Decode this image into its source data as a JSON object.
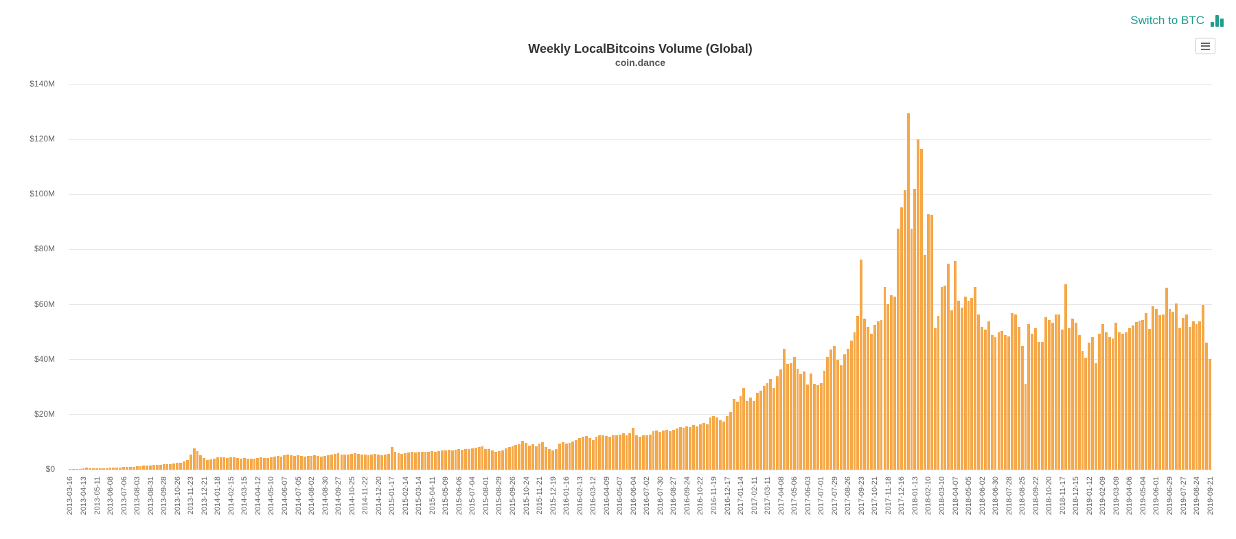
{
  "header": {
    "switch_link": {
      "label": "Switch to BTC",
      "color": "#1f9d8f",
      "icon": "bar-chart-icon"
    },
    "context_menu": {
      "icon": "hamburger-icon"
    }
  },
  "chart": {
    "title": "Weekly LocalBitcoins Volume (Global)",
    "subtitle": "coin.dance",
    "colors": {
      "bar": "#f5a849",
      "grid": "#e7e7e7",
      "axis_label": "#666666",
      "title": "#333333",
      "subtitle": "#555555",
      "link": "#1f9d8f"
    }
  },
  "chart_data": {
    "type": "bar",
    "title": "Weekly LocalBitcoins Volume (Global)",
    "subtitle": "coin.dance",
    "x_start": "2013-03-16",
    "x_interval": "weekly",
    "x_tick_every": 4,
    "x_tick_labels": [
      "2013-03-16",
      "2013-04-13",
      "2013-05-11",
      "2013-06-08",
      "2013-07-06",
      "2013-08-03",
      "2013-08-31",
      "2013-09-28",
      "2013-10-26",
      "2013-11-23",
      "2013-12-21",
      "2014-01-18",
      "2014-02-15",
      "2014-03-15",
      "2014-04-12",
      "2014-05-10",
      "2014-06-07",
      "2014-07-05",
      "2014-08-02",
      "2014-08-30",
      "2014-09-27",
      "2014-10-25",
      "2014-11-22",
      "2014-12-20",
      "2015-01-17",
      "2015-02-14",
      "2015-03-14",
      "2015-04-11",
      "2015-05-09",
      "2015-06-06",
      "2015-07-04",
      "2015-08-01",
      "2015-08-29",
      "2015-09-26",
      "2015-10-24",
      "2015-11-21",
      "2015-12-19",
      "2016-01-16",
      "2016-02-13",
      "2016-03-12",
      "2016-04-09",
      "2016-05-07",
      "2016-06-04",
      "2016-07-02",
      "2016-07-30",
      "2016-08-27",
      "2016-09-24",
      "2016-10-22",
      "2016-11-19",
      "2016-12-17",
      "2017-01-14",
      "2017-02-11",
      "2017-03-11",
      "2017-04-08",
      "2017-05-06",
      "2017-06-03",
      "2017-07-01",
      "2017-07-29",
      "2017-08-26",
      "2017-09-23",
      "2017-10-21",
      "2017-11-18",
      "2017-12-16",
      "2018-01-13",
      "2018-02-10",
      "2018-03-10",
      "2018-04-07",
      "2018-05-05",
      "2018-06-02",
      "2018-06-30",
      "2018-07-28",
      "2018-08-25",
      "2018-09-22",
      "2018-10-20",
      "2018-11-17",
      "2018-12-15",
      "2019-01-12",
      "2019-02-09",
      "2019-03-09",
      "2019-04-06",
      "2019-05-04",
      "2019-06-01",
      "2019-06-29",
      "2019-07-27",
      "2019-08-24",
      "2019-09-21"
    ],
    "y_tick_labels": [
      "$0",
      "$20M",
      "$40M",
      "$60M",
      "$80M",
      "$100M",
      "$120M",
      "$140M"
    ],
    "ylim": [
      0,
      140
    ],
    "y_unit": "USD millions",
    "grid": "horizontal",
    "bar_color": "#f5a849",
    "values": [
      0.2,
      0.25,
      0.3,
      0.3,
      0.5,
      0.7,
      0.6,
      0.5,
      0.5,
      0.5,
      0.6,
      0.6,
      0.7,
      0.7,
      0.8,
      0.8,
      0.9,
      1.0,
      1.0,
      1.1,
      1.2,
      1.3,
      1.4,
      1.5,
      1.6,
      1.7,
      1.8,
      1.8,
      1.9,
      2.0,
      2.1,
      2.2,
      2.4,
      2.6,
      3.0,
      3.6,
      5.5,
      7.8,
      6.8,
      5.2,
      4.2,
      3.6,
      3.8,
      4.0,
      4.4,
      4.6,
      4.4,
      4.2,
      4.6,
      4.4,
      4.2,
      4.0,
      4.2,
      4.0,
      3.9,
      4.0,
      4.2,
      4.4,
      4.3,
      4.2,
      4.5,
      4.8,
      5.0,
      4.8,
      5.2,
      5.4,
      5.2,
      5.0,
      5.2,
      5.0,
      4.8,
      4.9,
      5.0,
      5.2,
      5.0,
      4.8,
      5.0,
      5.3,
      5.6,
      5.8,
      6.0,
      5.6,
      5.4,
      5.6,
      5.8,
      6.0,
      5.8,
      5.6,
      5.5,
      5.3,
      5.5,
      5.7,
      5.4,
      5.2,
      5.5,
      5.8,
      8.3,
      6.5,
      6.0,
      5.8,
      6.0,
      6.2,
      6.4,
      6.3,
      6.5,
      6.6,
      6.4,
      6.6,
      6.8,
      6.6,
      6.8,
      7.0,
      7.0,
      7.2,
      7.0,
      7.2,
      7.4,
      7.2,
      7.4,
      7.6,
      7.8,
      8.0,
      8.2,
      8.4,
      7.5,
      7.4,
      7.0,
      6.5,
      6.8,
      7.1,
      7.7,
      8.2,
      8.5,
      9.0,
      9.2,
      10.4,
      9.8,
      8.7,
      9.2,
      8.5,
      9.5,
      10.0,
      8.2,
      7.4,
      7.1,
      7.5,
      9.4,
      10.0,
      9.6,
      9.8,
      10.2,
      10.8,
      11.6,
      12.0,
      12.3,
      11.6,
      10.8,
      12.0,
      12.4,
      12.6,
      12.3,
      12.0,
      12.4,
      12.6,
      12.8,
      13.2,
      12.6,
      13.3,
      15.3,
      12.4,
      12.0,
      12.6,
      12.4,
      12.8,
      13.9,
      14.3,
      13.8,
      14.3,
      14.6,
      14.0,
      14.6,
      15.0,
      15.6,
      15.3,
      15.8,
      15.6,
      16.3,
      15.8,
      16.6,
      17.1,
      16.4,
      19.0,
      19.4,
      19.0,
      18.0,
      17.5,
      19.5,
      21.0,
      25.8,
      24.7,
      26.8,
      29.6,
      25.0,
      26.3,
      25.0,
      28.0,
      28.6,
      30.4,
      31.5,
      33.0,
      29.6,
      34.0,
      36.5,
      44.0,
      38.5,
      38.6,
      41.0,
      36.6,
      34.8,
      35.7,
      31.0,
      35.0,
      31.2,
      30.8,
      31.5,
      36.0,
      41.0,
      43.8,
      45.0,
      40.0,
      38.0,
      42.0,
      44.0,
      47.0,
      50.0,
      56.0,
      76.3,
      55.0,
      52.0,
      49.5,
      52.7,
      54.0,
      54.5,
      66.4,
      60.2,
      63.5,
      63.0,
      87.5,
      95.3,
      101.5,
      129.5,
      87.5,
      102.0,
      120.0,
      116.5,
      78.0,
      92.8,
      92.5,
      51.5,
      56.0,
      66.5,
      67.0,
      75.0,
      58.0,
      76.0,
      61.5,
      59.0,
      63.0,
      61.5,
      62.5,
      66.5,
      56.5,
      51.8,
      50.8,
      53.8,
      49.0,
      48.3,
      50.0,
      50.3,
      49.0,
      48.5,
      57.0,
      56.5,
      51.8,
      45.0,
      31.2,
      53.0,
      49.3,
      51.5,
      46.4,
      46.4,
      55.3,
      54.3,
      53.5,
      56.4,
      56.5,
      51.0,
      67.3,
      51.5,
      55.0,
      53.3,
      49.0,
      43.3,
      40.8,
      46.3,
      48.3,
      38.6,
      49.5,
      52.8,
      50.0,
      48.3,
      47.8,
      53.3,
      50.0,
      49.5,
      50.0,
      51.4,
      52.4,
      53.7,
      54.1,
      54.3,
      57.0,
      51.2,
      59.3,
      58.4,
      56.2,
      56.5,
      66.2,
      58.3,
      57.4,
      60.3,
      51.3,
      55.1,
      56.5,
      51.8,
      54.0,
      52.8,
      53.8,
      60.0,
      46.2,
      40.3
    ]
  }
}
